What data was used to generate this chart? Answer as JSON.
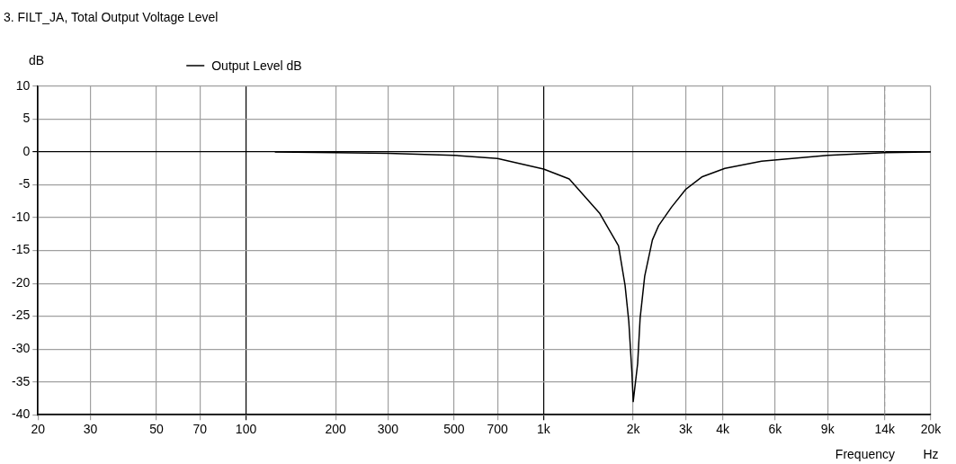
{
  "chart_data": {
    "type": "line",
    "title": "3. FILT_JA, Total Output Voltage Level",
    "xlabel": "Frequency",
    "ylabel": "dB",
    "annotations": [
      "Hz"
    ],
    "log": "x",
    "grid": true,
    "legend": "top left",
    "marker": "none",
    "line_style": "solid",
    "xlim": [
      20,
      20000
    ],
    "xticks": [
      20,
      30,
      50,
      70,
      100,
      200,
      300,
      500,
      700,
      {
        "value": 1000,
        "label": "1k"
      },
      {
        "value": 2000,
        "label": "2k"
      },
      {
        "value": 3000,
        "label": "3k"
      },
      {
        "value": 4000,
        "label": "4k"
      },
      {
        "value": 6000,
        "label": "6k"
      },
      {
        "value": 9000,
        "label": "9k"
      },
      {
        "value": 14000,
        "label": "14k"
      },
      {
        "value": 20000,
        "label": "20k"
      }
    ],
    "ylim": [
      -40,
      10
    ],
    "yticks": [
      10,
      5,
      0,
      -5,
      -10,
      -15,
      -20,
      -25,
      -30,
      -35,
      -40
    ],
    "ref_lines": [
      {
        "axis": "x",
        "value": 14000,
        "color": "#999999",
        "line_style": "dashed"
      }
    ],
    "series": [
      {
        "name": "Output Level dB",
        "color": "#000000",
        "x": [
          125,
          200,
          300,
          500,
          700,
          1000,
          1219,
          1541,
          1785,
          1878,
          1933,
          1980,
          2000,
          2070,
          2110,
          2186,
          2320,
          2435,
          2690,
          3000,
          3400,
          4065,
          5400,
          9000,
          14000,
          20000
        ],
        "values": [
          0,
          -0.1,
          -0.2,
          -0.5,
          -1.0,
          -2.6,
          -4.1,
          -9.3,
          -14.3,
          -20.3,
          -25.8,
          -33.6,
          -38,
          -32.2,
          -25.3,
          -18.9,
          -13.4,
          -11.2,
          -8.4,
          -5.7,
          -3.8,
          -2.5,
          -1.4,
          -0.5,
          -0.1,
          0
        ]
      }
    ]
  }
}
